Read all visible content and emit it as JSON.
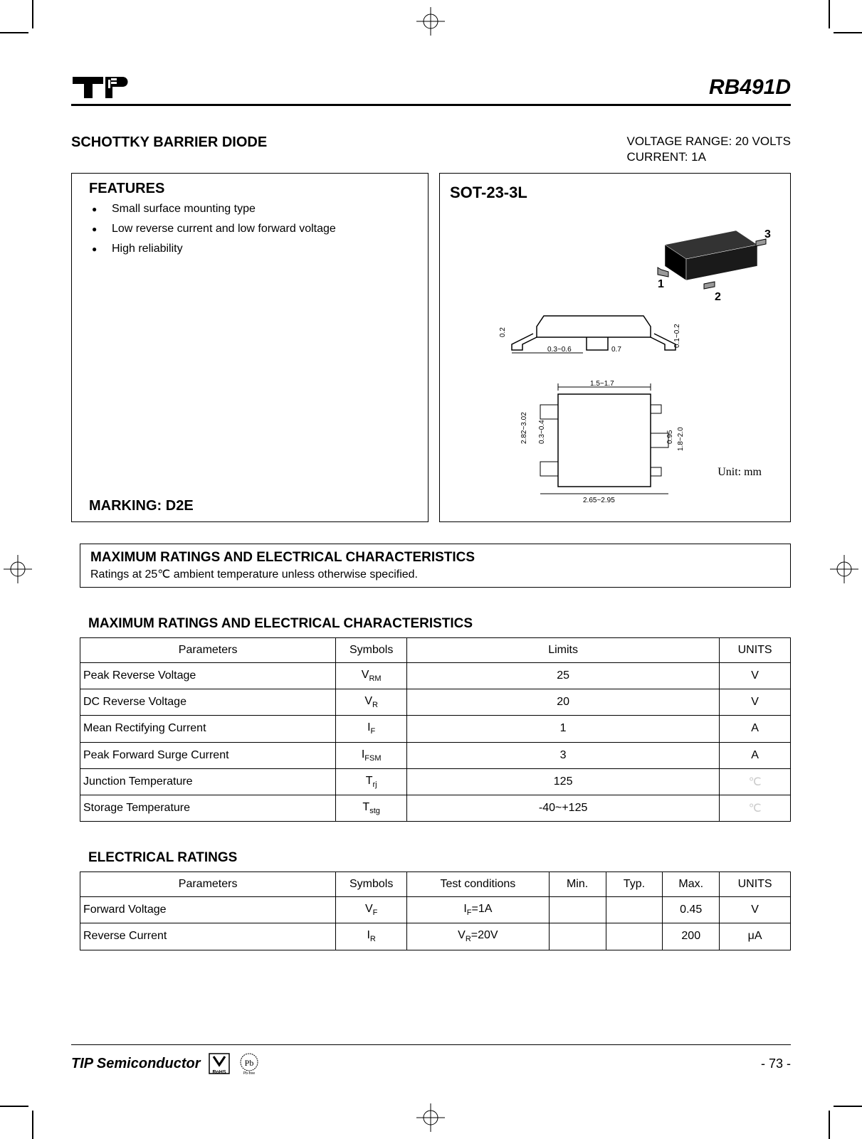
{
  "header": {
    "part_number": "RB491D"
  },
  "title": {
    "main": "SCHOTTKY BARRIER DIODE",
    "voltage_spec": "VOLTAGE RANGE: 20 VOLTS",
    "current_spec": "CURRENT: 1A"
  },
  "features": {
    "heading": "FEATURES",
    "items": [
      "Small surface mounting type",
      "Low reverse current and low forward voltage",
      "High reliability"
    ],
    "marking": "MARKING: D2E"
  },
  "package": {
    "label": "SOT-23-3L",
    "unit": "Unit: mm",
    "pins": {
      "p1": "1",
      "p2": "2",
      "p3": "3"
    },
    "dims": {
      "d1": "0.3~0.6",
      "d2": "0.7",
      "d3": "0.2",
      "d4": "0.1~0.2",
      "d5": "1.5~1.7",
      "d6": "2.82~3.02",
      "d7": "0.3~0.4",
      "d8": "0.95",
      "d9": "1.8~2.0",
      "d10": "2.65~2.95"
    }
  },
  "max_ratings_box": {
    "heading": "MAXIMUM RATINGS AND ELECTRICAL CHARACTERISTICS",
    "sub": "Ratings at 25℃ ambient temperature unless otherwise specified."
  },
  "table1": {
    "title": "MAXIMUM RATINGS AND ELECTRICAL CHARACTERISTICS",
    "headers": {
      "param": "Parameters",
      "symbol": "Symbols",
      "limits": "Limits",
      "units": "UNITS"
    },
    "col_widths": {
      "param": "36%",
      "symbol": "10%",
      "limits": "44%",
      "units": "10%"
    },
    "rows": [
      {
        "param": "Peak Reverse Voltage",
        "sym": "V",
        "sub": "RM",
        "limits": "25",
        "units": "V"
      },
      {
        "param": "DC Reverse Voltage",
        "sym": "V",
        "sub": "R",
        "limits": "20",
        "units": "V"
      },
      {
        "param": "Mean Rectifying Current",
        "sym": "I",
        "sub": "F",
        "limits": "1",
        "units": "A"
      },
      {
        "param": "Peak Forward Surge Current",
        "sym": "I",
        "sub": "FSM",
        "limits": "3",
        "units": "A"
      },
      {
        "param": "Junction Temperature",
        "sym": "T",
        "sub": "rj",
        "limits": "125",
        "units": "℃"
      },
      {
        "param": "Storage Temperature",
        "sym": "T",
        "sub": "stg",
        "limits": "-40~+125",
        "units": "℃"
      }
    ]
  },
  "table2": {
    "title": "ELECTRICAL RATINGS",
    "headers": {
      "param": "Parameters",
      "symbol": "Symbols",
      "cond": "Test conditions",
      "min": "Min.",
      "typ": "Typ.",
      "max": "Max.",
      "units": "UNITS"
    },
    "col_widths": {
      "param": "36%",
      "symbol": "10%",
      "cond": "20%",
      "min": "8%",
      "typ": "8%",
      "max": "8%",
      "units": "10%"
    },
    "rows": [
      {
        "param": "Forward Voltage",
        "sym": "V",
        "sub": "F",
        "cond_sym": "I",
        "cond_sub": "F",
        "cond_val": "=1A",
        "min": "",
        "typ": "",
        "max": "0.45",
        "units": "V"
      },
      {
        "param": "Reverse Current",
        "sym": "I",
        "sub": "R",
        "cond_sym": "V",
        "cond_sub": "R",
        "cond_val": "=20V",
        "min": "",
        "typ": "",
        "max": "200",
        "units": "μA"
      }
    ]
  },
  "footer": {
    "company": "TIP Semiconductor",
    "page": "- 73 -"
  },
  "colors": {
    "text": "#000000",
    "bg": "#ffffff",
    "border": "#000000",
    "unit_gray": "#cccccc"
  }
}
